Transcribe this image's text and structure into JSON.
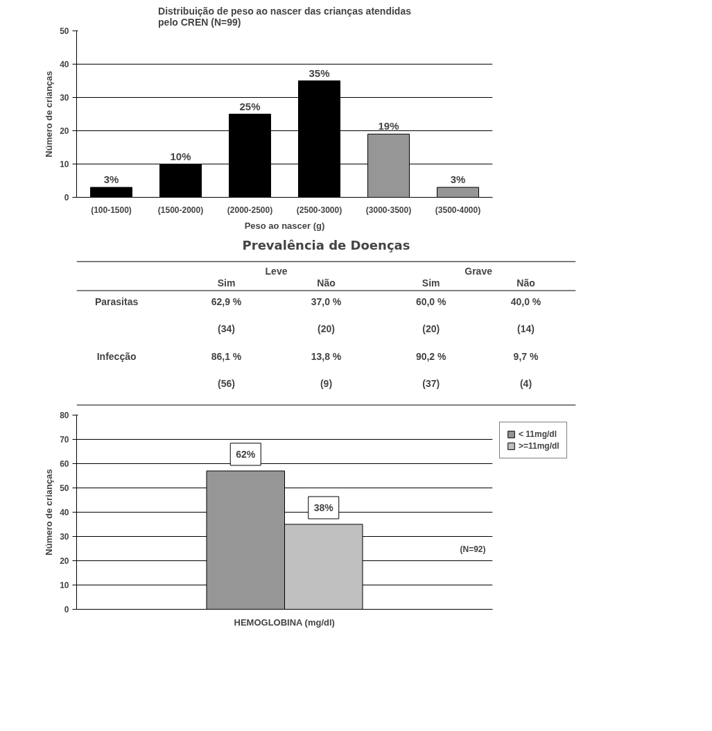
{
  "chart_data": [
    {
      "type": "bar",
      "title": "Distribuição de peso ao nascer das crianças atendidas\npelo CREN (N=99)",
      "xlabel": "Peso ao nascer (g)",
      "ylabel": "Número de crianças",
      "categories": [
        "(100-1500)",
        "(1500-2000)",
        "(2000-2500)",
        "(2500-3000)",
        "(3000-3500)",
        "(3500-4000)"
      ],
      "values": [
        3,
        10,
        25,
        35,
        19,
        3
      ],
      "colors": [
        "#000000",
        "#000000",
        "#000000",
        "#000000",
        "#969696",
        "#969696"
      ],
      "value_labels": [
        "3%",
        "10%",
        "25%",
        "35%",
        "19%",
        "3%"
      ],
      "ylim": [
        0,
        50
      ],
      "yticks": [
        0,
        10,
        20,
        30,
        40,
        50
      ],
      "grid": "y"
    },
    {
      "type": "other",
      "title": "Prevalência de Doenças",
      "annotations": [
        "Leve",
        "Grave",
        "Sim",
        "Não",
        "Sim",
        "Não",
        "Parasitas",
        "62,9 %",
        "37,0 %",
        "60,0 %",
        "40,0 %",
        "(34)",
        "(20)",
        "(20)",
        "(14)",
        "Infecção",
        "86,1 %",
        "13,8 %",
        "90,2 %",
        "9,7 %",
        "(56)",
        "(9)",
        "(37)",
        "(4)"
      ]
    },
    {
      "type": "bar",
      "xlabel": "HEMOGLOBINA (mg/dl)",
      "ylabel": "Número de crianças",
      "categories": [
        null
      ],
      "series": [
        {
          "name": "< 11mg/dl",
          "color": "#969696",
          "values": [
            57
          ]
        },
        {
          "name": ">=11mg/dl",
          "color": "#c0c0c0",
          "values": [
            35
          ]
        }
      ],
      "ylim": [
        0,
        80
      ],
      "yticks": [
        0,
        10,
        20,
        30,
        40,
        50,
        60,
        70,
        80
      ],
      "grid": "y",
      "legend": "right",
      "annotations": [
        "(N=92)",
        {
          "text": "62%",
          "y": 57
        },
        {
          "text": "38%",
          "y": 35
        }
      ]
    }
  ]
}
